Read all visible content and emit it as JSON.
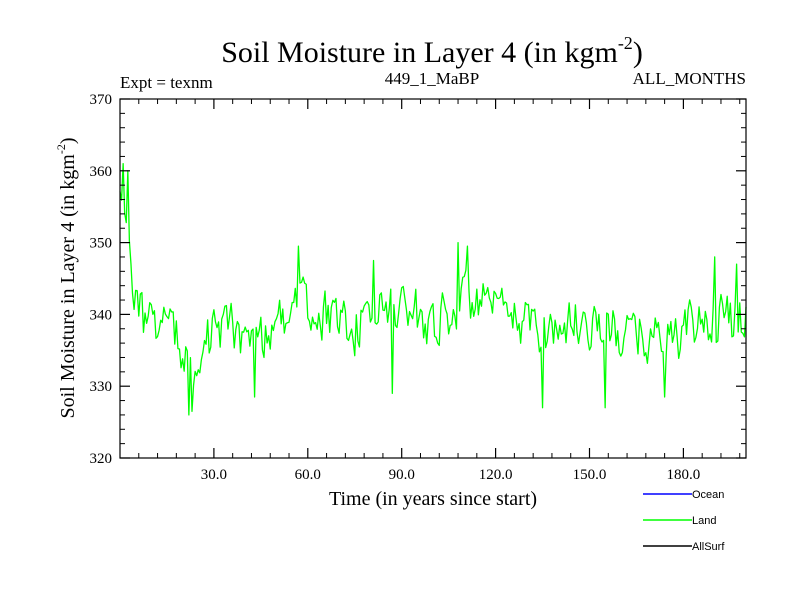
{
  "chart_data": {
    "type": "line",
    "title": "Soil Moisture in Layer 4 (in kgm",
    "title_sup": "-2",
    "title_close": ")",
    "subtitle_left": "Expt = texnm",
    "subtitle_center": "449_1_MaBP",
    "subtitle_right": "ALL_MONTHS",
    "xlabel": "Time (in years since start)",
    "ylabel": "Soil Moisture in Layer 4 (in kgm",
    "ylabel_sup": "-2",
    "ylabel_close": ")",
    "xlim": [
      0,
      200
    ],
    "ylim": [
      320,
      370
    ],
    "x_ticks": [
      30,
      60,
      90,
      120,
      150,
      180
    ],
    "x_tick_labels": [
      "30.0",
      "60.0",
      "90.0",
      "120.0",
      "150.0",
      "180.0"
    ],
    "y_ticks": [
      320,
      330,
      340,
      350,
      360,
      370
    ],
    "y_tick_labels": [
      "320",
      "330",
      "340",
      "350",
      "360",
      "370"
    ],
    "legend": [
      {
        "name": "Ocean",
        "color": "#0000ff"
      },
      {
        "name": "Land",
        "color": "#00ff00"
      },
      {
        "name": "AllSurf",
        "color": "#000000"
      }
    ],
    "series": [
      {
        "name": "Land",
        "color": "#00ff00",
        "x_step": 0.5,
        "profile": [
          [
            0,
            356
          ],
          [
            1,
            358
          ],
          [
            2,
            355
          ],
          [
            3,
            350
          ],
          [
            4,
            345
          ],
          [
            5,
            342
          ],
          [
            6,
            340
          ],
          [
            8,
            339
          ],
          [
            10,
            340
          ],
          [
            13,
            339
          ],
          [
            16,
            337
          ],
          [
            19,
            336
          ],
          [
            21,
            334
          ],
          [
            22,
            332
          ],
          [
            24,
            335
          ],
          [
            27,
            337
          ],
          [
            30,
            337
          ],
          [
            33,
            338
          ],
          [
            36,
            338
          ],
          [
            40,
            337
          ],
          [
            45,
            337
          ],
          [
            50,
            339
          ],
          [
            55,
            341
          ],
          [
            60,
            341
          ],
          [
            65,
            340
          ],
          [
            70,
            339
          ],
          [
            75,
            338
          ],
          [
            80,
            339
          ],
          [
            85,
            341
          ],
          [
            90,
            341
          ],
          [
            95,
            340
          ],
          [
            100,
            339
          ],
          [
            105,
            340
          ],
          [
            110,
            342
          ],
          [
            115,
            342
          ],
          [
            120,
            340
          ],
          [
            125,
            339
          ],
          [
            130,
            339
          ],
          [
            135,
            338
          ],
          [
            140,
            338
          ],
          [
            145,
            339
          ],
          [
            150,
            339
          ],
          [
            155,
            338
          ],
          [
            160,
            337
          ],
          [
            165,
            337
          ],
          [
            170,
            337
          ],
          [
            175,
            337
          ],
          [
            180,
            337
          ],
          [
            185,
            339
          ],
          [
            190,
            339
          ],
          [
            195,
            339
          ],
          [
            200,
            340
          ]
        ],
        "noise_amplitude": 3.2,
        "seed": 44912,
        "min": 326,
        "max": 361,
        "spikes": [
          [
            1,
            361
          ],
          [
            2.5,
            360
          ],
          [
            22,
            326
          ],
          [
            23,
            326.5
          ],
          [
            43,
            328.5
          ],
          [
            57,
            349.5
          ],
          [
            81,
            347.5
          ],
          [
            87,
            329
          ],
          [
            108,
            350
          ],
          [
            111,
            349.5
          ],
          [
            135,
            327
          ],
          [
            155,
            327
          ],
          [
            174,
            328.5
          ],
          [
            190,
            348
          ],
          [
            197,
            347
          ]
        ]
      }
    ]
  }
}
